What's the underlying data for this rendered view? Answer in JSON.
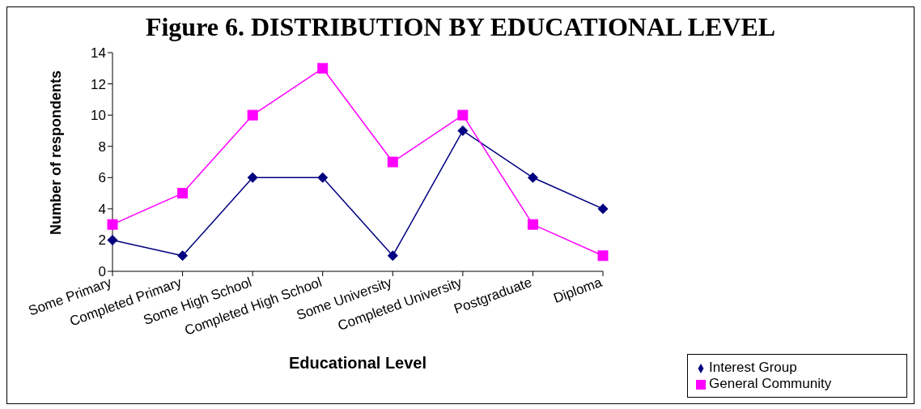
{
  "chart_data": {
    "type": "line",
    "title": "Figure 6. DISTRIBUTION BY EDUCATIONAL LEVEL",
    "xlabel": "Educational Level",
    "ylabel": "Number of respondents",
    "categories": [
      "Some Primary",
      "Completed Primary",
      "Some High School",
      "Completed High School",
      "Some University",
      "Completed University",
      "Postgraduate",
      "Diploma"
    ],
    "series": [
      {
        "name": "Interest Group",
        "color": "#000080",
        "values": [
          2,
          1,
          6,
          6,
          1,
          9,
          6,
          4
        ],
        "marker": "diamond"
      },
      {
        "name": "General Community",
        "color": "#ff00ff",
        "values": [
          3,
          5,
          10,
          13,
          7,
          10,
          3,
          1
        ],
        "marker": "square"
      }
    ],
    "ylim": [
      0,
      14
    ],
    "yticks": [
      0,
      2,
      4,
      6,
      8,
      10,
      12,
      14
    ],
    "grid": false,
    "legend": "bottom right"
  }
}
